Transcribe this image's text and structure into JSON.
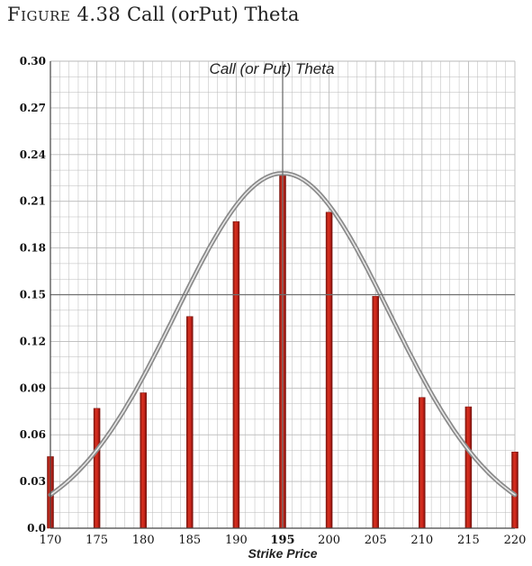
{
  "caption": {
    "prefix": "Figure 4.38",
    "text": "Call (orPut) Theta"
  },
  "chart_data": {
    "type": "bar",
    "title": "Call (or Put) Theta",
    "xlabel": "Strike Price",
    "ylabel": "",
    "categories": [
      "170",
      "175",
      "180",
      "185",
      "190",
      "195",
      "200",
      "205",
      "210",
      "215",
      "220"
    ],
    "values": [
      0.046,
      0.077,
      0.087,
      0.136,
      0.197,
      0.227,
      0.203,
      0.149,
      0.084,
      0.078,
      0.049
    ],
    "y_tick_labels": [
      "0.0",
      "0.03",
      "0.06",
      "0.09",
      "0.12",
      "0.15",
      "0.18",
      "0.21",
      "0.24",
      "0.27",
      "0.30"
    ],
    "ylim": [
      0,
      0.3
    ],
    "xlim": [
      170,
      220
    ],
    "reference_lines": {
      "x": 195,
      "y": 0.15
    },
    "curve": {
      "type": "bell",
      "peak_x": 195,
      "peak_y": 0.228,
      "sigma": 11.5,
      "baseline": 0.0
    },
    "grid": true,
    "bold_x_ticks": [
      "195"
    ],
    "colors": {
      "bar": "#c8241a",
      "bar_edge": "#7a120c",
      "curve": "#8a8a8a",
      "curve_highlight": "#e6e6e6",
      "grid": "#b9b9b9",
      "reference_line": "#6f6f6f",
      "axis": "#444444"
    }
  }
}
